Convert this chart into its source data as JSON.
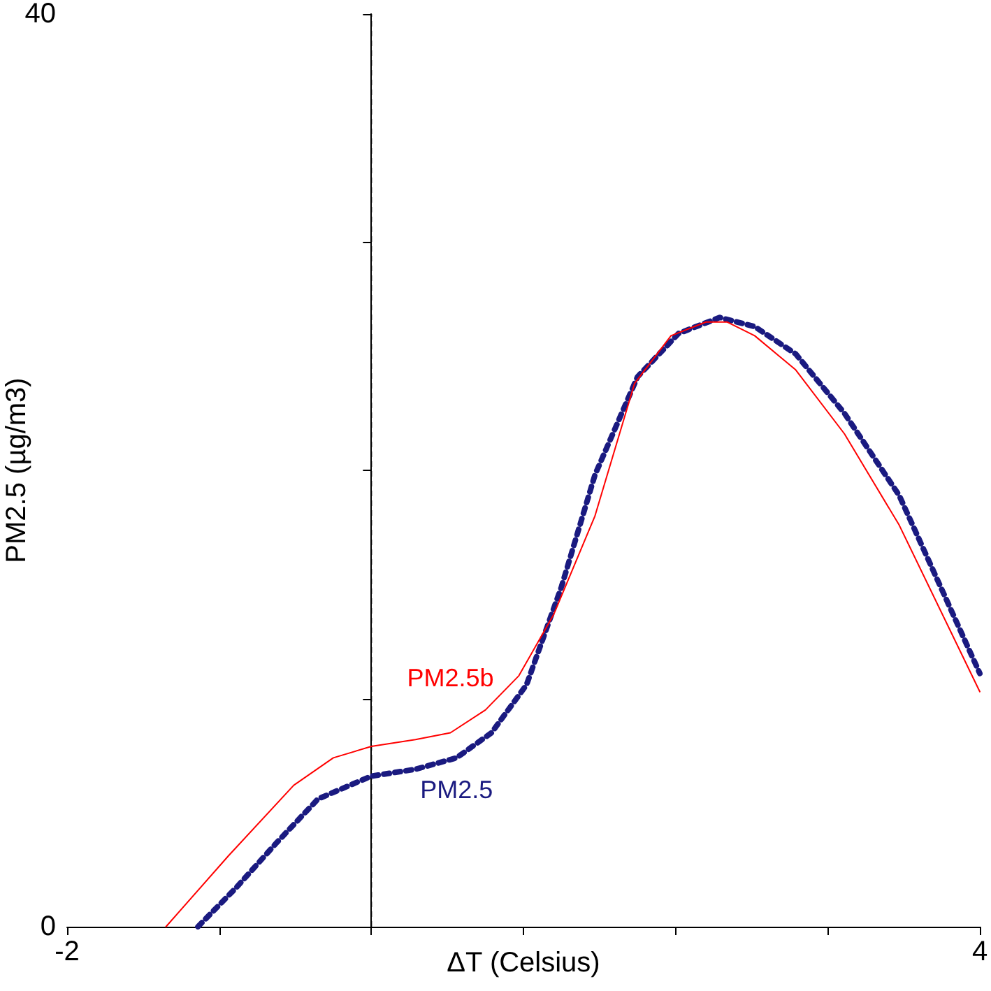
{
  "chart_data": {
    "type": "line",
    "xlabel": "ΔT (Celsius)",
    "ylabel": "PM2.5 (µg/m3)",
    "xlim": [
      -2,
      4
    ],
    "ylim": [
      0,
      40
    ],
    "xticks": [
      -2,
      {
        "value": -1,
        "label": null
      },
      {
        "value": 0,
        "label": null
      },
      {
        "value": 1,
        "label": null
      },
      {
        "value": 2,
        "label": null
      },
      {
        "value": 3,
        "label": null
      },
      4
    ],
    "yticks": [
      0,
      {
        "value": 10,
        "label": null
      },
      {
        "value": 20,
        "label": null
      },
      {
        "value": 30,
        "label": null
      },
      40
    ],
    "grid": false,
    "legend": false,
    "marker": "none",
    "ref_lines": [
      {
        "axis": "x",
        "value": 0,
        "label": null,
        "color": "#000000",
        "line_style": "dashed"
      }
    ],
    "series": [
      {
        "name": "PM2.5b",
        "color": "#ff0000",
        "line_style": "solid",
        "x": [
          -1.35,
          -0.94,
          -0.51,
          -0.25,
          0,
          0.29,
          0.52,
          0.75,
          0.97,
          1.2,
          1.47,
          1.73,
          1.97,
          2.2,
          2.34,
          2.52,
          2.79,
          3.11,
          3.47,
          4
        ],
        "values": [
          0,
          3.1,
          6.2,
          7.4,
          7.9,
          8.2,
          8.5,
          9.5,
          11,
          13.7,
          18,
          23.8,
          25.9,
          26.5,
          26.5,
          25.9,
          24.4,
          21.6,
          17.6,
          10.3
        ]
      },
      {
        "name": "PM2.5",
        "color": "#1a1a80",
        "line_style": "dotted",
        "x": [
          -1.14,
          -0.89,
          -0.62,
          -0.35,
          0,
          0.29,
          0.56,
          0.79,
          1.02,
          1.25,
          1.47,
          1.75,
          2.02,
          2.29,
          2.52,
          2.79,
          3.11,
          3.47,
          4
        ],
        "values": [
          0,
          1.7,
          3.7,
          5.6,
          6.6,
          6.9,
          7.4,
          8.5,
          10.6,
          14.9,
          19.8,
          24.1,
          26,
          26.7,
          26.3,
          25.1,
          22.5,
          18.9,
          11.1
        ]
      }
    ]
  }
}
